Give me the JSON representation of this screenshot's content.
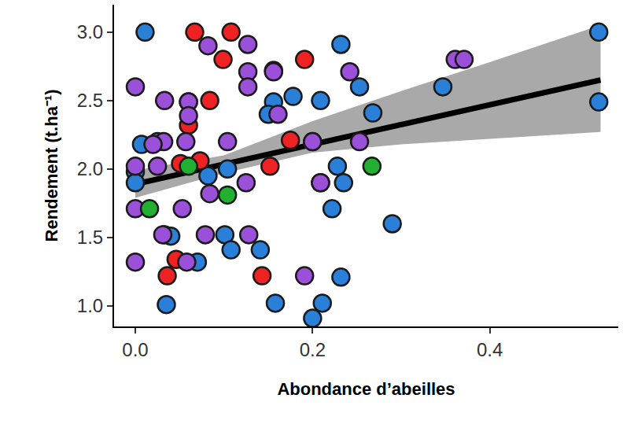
{
  "chart_data": {
    "type": "scatter",
    "x_label": "Abondance d’abeilles",
    "y_label": "Rendement (t.ha⁻¹)",
    "xlim": [
      -0.024,
      0.545
    ],
    "ylim": [
      0.85,
      3.2
    ],
    "xticks": [
      {
        "value": 0,
        "label": "0.0"
      },
      0.2,
      0.4
    ],
    "yticks": [
      {
        "value": 1,
        "label": "1.0"
      },
      1.5,
      {
        "value": 2,
        "label": "2.0"
      },
      2.5,
      {
        "value": 3,
        "label": "3.0"
      }
    ],
    "grid": false,
    "series": [
      {
        "color": "#2a80d8",
        "marker": "circle",
        "x": [
          0.011,
          0.523,
          0.523,
          0.347,
          0.232,
          0.209,
          0.178,
          0.156,
          0.268,
          0.253,
          0.15,
          0.007,
          0,
          0,
          0.104,
          0.2,
          0.228,
          0.235,
          0.209,
          0.222,
          0.29,
          0.033,
          0.04,
          0.101,
          0.108,
          0.141,
          0.07,
          0.035,
          0.158,
          0.211,
          0.2,
          0.232,
          0.082
        ],
        "y": [
          3.0,
          3.0,
          2.49,
          2.6,
          2.91,
          2.5,
          2.53,
          2.49,
          2.41,
          2.6,
          2.4,
          2.18,
          1.98,
          1.9,
          2.0,
          2.2,
          2.02,
          1.9,
          1.9,
          1.71,
          1.6,
          1.52,
          1.51,
          1.52,
          1.41,
          1.41,
          1.32,
          1.01,
          1.02,
          1.02,
          0.91,
          1.21,
          1.95
        ]
      },
      {
        "color": "#ee2222",
        "marker": "circle",
        "x": [
          0.067,
          0.108,
          0.099,
          0.191,
          0.06,
          0.084,
          0.156,
          0.175,
          0.152,
          0.073,
          0.051,
          0.06,
          0.143,
          0.036,
          0.046
        ],
        "y": [
          3.0,
          3.0,
          2.8,
          2.8,
          2.49,
          2.5,
          2.72,
          2.21,
          2.02,
          2.06,
          2.04,
          2.32,
          1.22,
          1.22,
          1.34
        ]
      },
      {
        "color": "#9a50d8",
        "marker": "circle",
        "x": [
          0,
          0.082,
          0.127,
          0.127,
          0.156,
          0.127,
          0.033,
          0.06,
          0.161,
          0.06,
          0.104,
          0.025,
          0.032,
          0.057,
          0.2,
          0.253,
          0.242,
          0.361,
          0.371,
          0,
          0.025,
          0,
          0.053,
          0.125,
          0.209,
          0.084,
          0.031,
          0.079,
          0.128,
          0.058,
          0.191,
          0,
          0.02
        ],
        "y": [
          2.6,
          2.9,
          2.91,
          2.71,
          2.71,
          2.6,
          2.5,
          2.49,
          2.4,
          2.39,
          2.2,
          2.2,
          2.2,
          2.2,
          2.2,
          2.2,
          2.71,
          2.8,
          2.8,
          2.02,
          2.02,
          1.71,
          1.71,
          1.9,
          1.9,
          1.82,
          1.52,
          1.52,
          1.52,
          1.32,
          1.22,
          1.32,
          2.18
        ]
      },
      {
        "color": "#22b033",
        "marker": "circle",
        "x": [
          0.06,
          0.267,
          0.016,
          0.104
        ],
        "y": [
          2.02,
          2.02,
          1.71,
          1.81
        ]
      }
    ],
    "fit": {
      "color": "#000000",
      "x": [
        0,
        0.525
      ],
      "y": [
        1.89,
        2.65
      ]
    },
    "band": {
      "color": "#a9a9a9",
      "x": [
        0,
        0.1,
        0.2,
        0.3,
        0.4,
        0.525
      ],
      "lower": [
        1.79,
        1.97,
        2.12,
        2.18,
        2.22,
        2.27
      ],
      "upper": [
        1.99,
        2.1,
        2.35,
        2.57,
        2.78,
        3.05
      ]
    }
  }
}
